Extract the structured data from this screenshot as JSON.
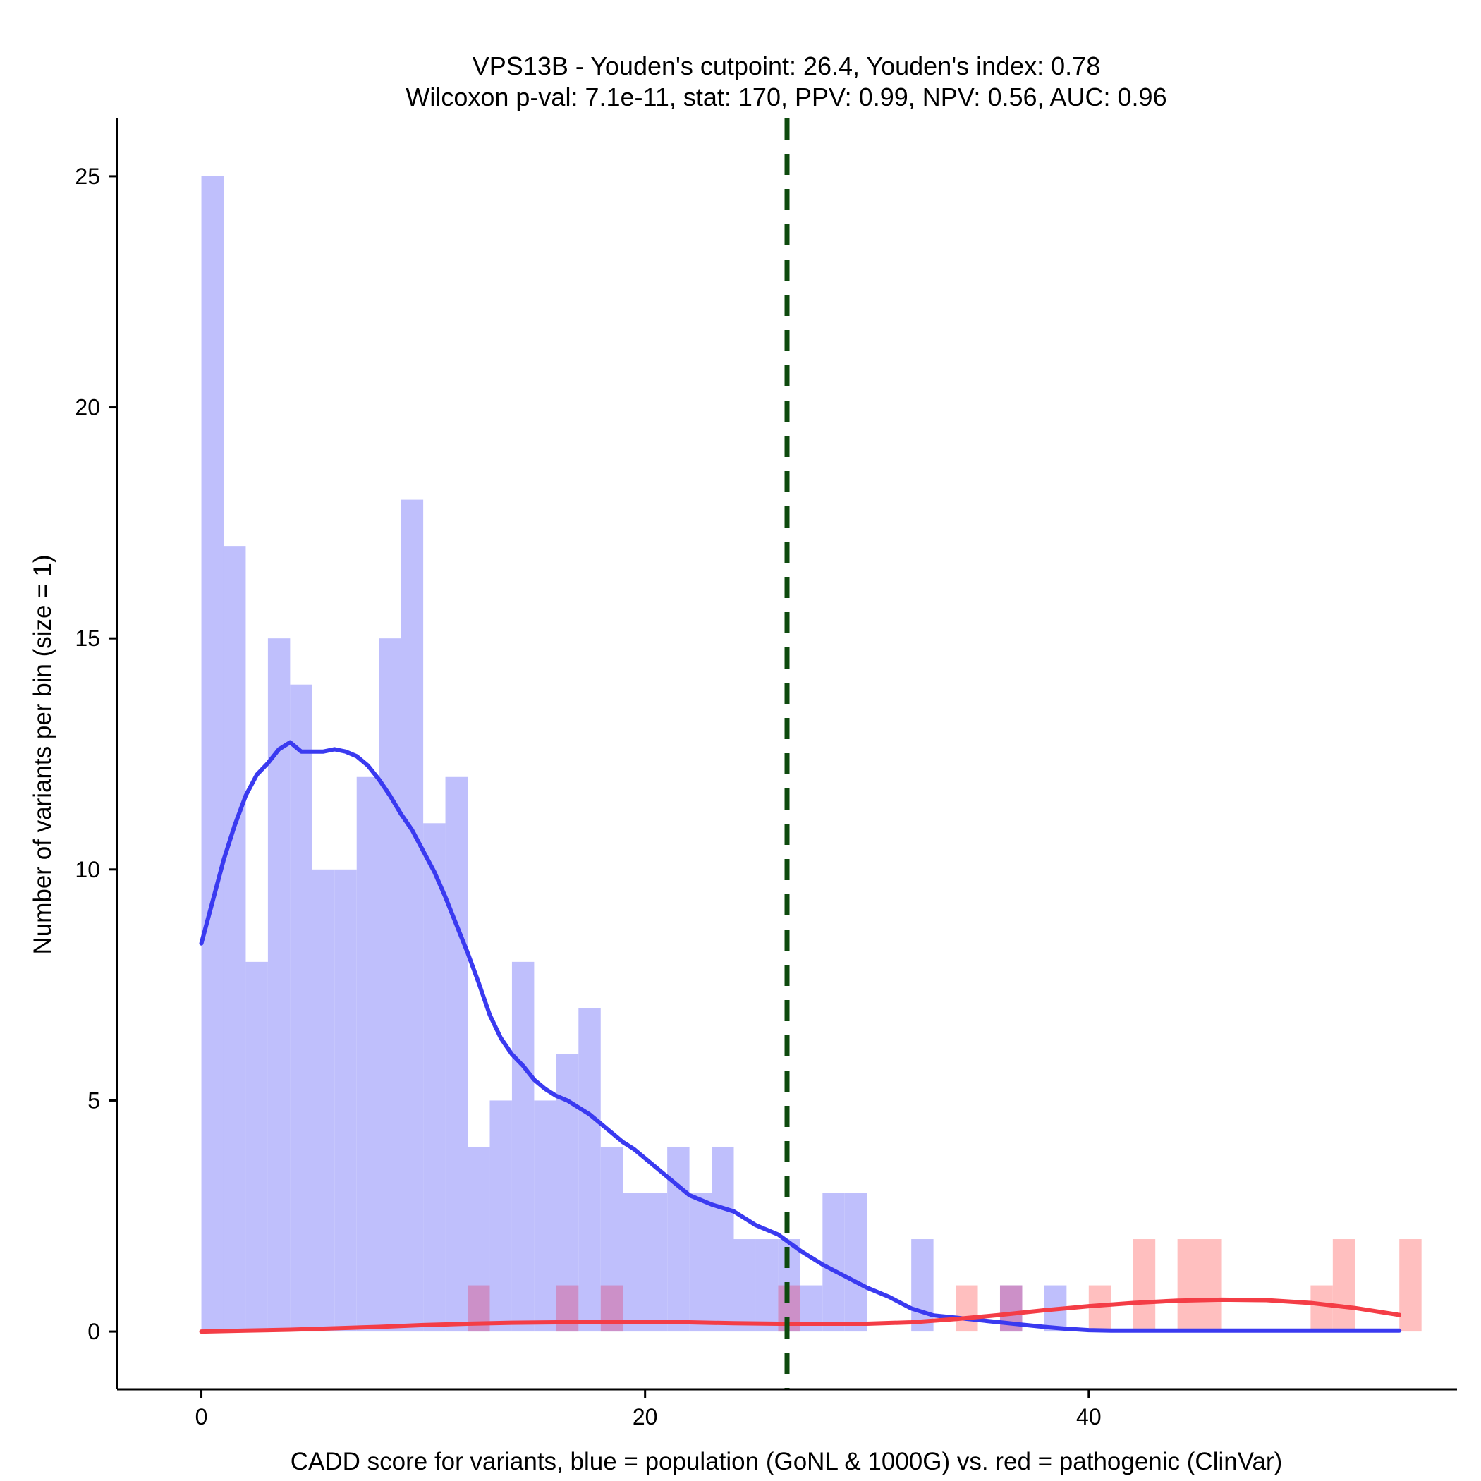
{
  "chart_data": {
    "type": "bar",
    "title_line1": "VPS13B - Youden's cutpoint: 26.4, Youden's index: 0.78",
    "title_line2": "Wilcoxon p-val: 7.1e-11, stat: 170, PPV: 0.99, NPV: 0.56, AUC: 0.96",
    "xlabel": "CADD score for variants, blue = population (GoNL & 1000G) vs. red = pathogenic (ClinVar)",
    "ylabel": "Number of variants per bin (size = 1)",
    "xlim": [
      -3.8,
      56.6
    ],
    "ylim": [
      -1.25,
      26.25
    ],
    "x_ticks": [
      0,
      20,
      40
    ],
    "y_ticks": [
      0,
      5,
      10,
      15,
      20,
      25
    ],
    "bin_width": 1,
    "cutpoint": 26.4,
    "colors": {
      "population_bar": "#bfbffc",
      "pathogenic_bar": "#ffbfbf",
      "overlap_bar": "#cc90c8",
      "population_curve": "#3a3af0",
      "pathogenic_curve": "#f43d46",
      "cutpoint_line": "#0e4a0e"
    },
    "series": [
      {
        "name": "population",
        "bin_starts": [
          0,
          1,
          2,
          3,
          4,
          5,
          6,
          7,
          8,
          9,
          10,
          11,
          12,
          13,
          14,
          15,
          16,
          17,
          18,
          19,
          20,
          21,
          22,
          23,
          24,
          25,
          26,
          27,
          28,
          29,
          30,
          31,
          32,
          33,
          34,
          35,
          36,
          37,
          38,
          39,
          40,
          41,
          42,
          43,
          44,
          45,
          46,
          47,
          48,
          49,
          50,
          51,
          52,
          53,
          54
        ],
        "values": [
          25,
          17,
          8,
          15,
          14,
          10,
          10,
          12,
          15,
          18,
          11,
          12,
          4,
          5,
          8,
          5,
          6,
          7,
          4,
          3,
          3,
          4,
          3,
          4,
          2,
          2,
          2,
          1,
          3,
          3,
          0,
          0,
          2,
          0,
          0,
          0,
          1,
          0,
          1,
          0,
          0,
          0,
          0,
          0,
          0,
          0,
          0,
          0,
          0,
          0,
          0,
          0,
          0,
          0,
          0
        ]
      },
      {
        "name": "pathogenic",
        "bin_starts": [
          0,
          1,
          2,
          3,
          4,
          5,
          6,
          7,
          8,
          9,
          10,
          11,
          12,
          13,
          14,
          15,
          16,
          17,
          18,
          19,
          20,
          21,
          22,
          23,
          24,
          25,
          26,
          27,
          28,
          29,
          30,
          31,
          32,
          33,
          34,
          35,
          36,
          37,
          38,
          39,
          40,
          41,
          42,
          43,
          44,
          45,
          46,
          47,
          48,
          49,
          50,
          51,
          52,
          53,
          54
        ],
        "values": [
          0,
          0,
          0,
          0,
          0,
          0,
          0,
          0,
          0,
          0,
          0,
          0,
          1,
          0,
          0,
          0,
          1,
          0,
          1,
          0,
          0,
          0,
          0,
          0,
          0,
          0,
          1,
          0,
          0,
          0,
          0,
          0,
          0,
          0,
          1,
          0,
          1,
          0,
          0,
          0,
          1,
          0,
          2,
          0,
          2,
          2,
          0,
          0,
          0,
          0,
          1,
          2,
          0,
          0,
          2
        ]
      }
    ],
    "density_curves": [
      {
        "name": "population",
        "x": [
          0,
          0.5,
          1,
          1.5,
          2,
          2.5,
          3,
          3.5,
          4,
          4.5,
          5,
          5.5,
          6,
          6.5,
          7,
          7.5,
          8,
          8.5,
          9,
          9.5,
          10,
          10.5,
          11,
          11.5,
          12,
          12.5,
          13,
          13.5,
          14,
          14.5,
          15,
          15.5,
          16,
          16.5,
          17,
          17.5,
          18,
          18.5,
          19,
          19.5,
          20,
          21,
          22,
          23,
          24,
          25,
          26,
          27,
          28,
          29,
          30,
          31,
          32,
          33,
          34,
          35,
          36,
          37,
          38,
          39,
          40,
          41,
          42,
          43,
          44,
          45,
          46,
          47,
          48,
          49,
          50,
          51,
          52,
          53,
          54
        ],
        "y": [
          8.4,
          9.3,
          10.2,
          10.95,
          11.6,
          12.05,
          12.3,
          12.6,
          12.75,
          12.55,
          12.55,
          12.55,
          12.6,
          12.55,
          12.45,
          12.25,
          11.95,
          11.6,
          11.2,
          10.85,
          10.4,
          9.95,
          9.4,
          8.8,
          8.2,
          7.55,
          6.85,
          6.35,
          6.0,
          5.75,
          5.45,
          5.25,
          5.1,
          5.0,
          4.85,
          4.7,
          4.5,
          4.3,
          4.1,
          3.95,
          3.75,
          3.35,
          2.95,
          2.75,
          2.6,
          2.3,
          2.1,
          1.75,
          1.45,
          1.2,
          0.95,
          0.75,
          0.5,
          0.35,
          0.3,
          0.25,
          0.2,
          0.15,
          0.1,
          0.06,
          0.03,
          0.02,
          0.02,
          0.02,
          0.02,
          0.02,
          0.02,
          0.02,
          0.02,
          0.02,
          0.02,
          0.02,
          0.02,
          0.02,
          0.02
        ]
      },
      {
        "name": "pathogenic",
        "x": [
          0,
          2,
          4,
          6,
          8,
          10,
          12,
          14,
          16,
          18,
          20,
          22,
          24,
          26,
          28,
          30,
          32,
          34,
          36,
          38,
          40,
          42,
          44,
          46,
          48,
          50,
          52,
          54
        ],
        "y": [
          0,
          0.02,
          0.04,
          0.07,
          0.1,
          0.14,
          0.17,
          0.19,
          0.2,
          0.21,
          0.21,
          0.2,
          0.18,
          0.17,
          0.17,
          0.17,
          0.2,
          0.27,
          0.36,
          0.46,
          0.55,
          0.62,
          0.67,
          0.69,
          0.68,
          0.62,
          0.51,
          0.36
        ]
      }
    ]
  }
}
